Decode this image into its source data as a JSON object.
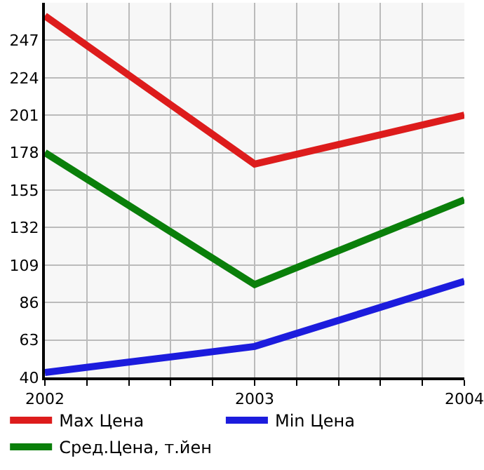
{
  "chart_data": {
    "type": "line",
    "x": [
      2002,
      2003,
      2004
    ],
    "series": [
      {
        "name": "Max Цена",
        "color": "#dd1c1c",
        "values": [
          262,
          171,
          201
        ]
      },
      {
        "name": "Min Цена",
        "color": "#1c1cdd",
        "values": [
          43,
          59,
          99
        ]
      },
      {
        "name": "Сред.Цена, т.йен",
        "color": "#0a7f0a",
        "values": [
          178,
          97,
          149
        ]
      }
    ],
    "xlim": [
      2002,
      2004
    ],
    "xticks": [
      2002,
      {
        "value": 2002.2,
        "label": null
      },
      {
        "value": 2002.4,
        "label": null
      },
      {
        "value": 2002.6,
        "label": null
      },
      {
        "value": 2002.8,
        "label": null
      },
      2003,
      {
        "value": 2003.2,
        "label": null
      },
      {
        "value": 2003.4,
        "label": null
      },
      {
        "value": 2003.6,
        "label": null
      },
      {
        "value": 2003.8,
        "label": null
      },
      2004
    ],
    "ylim": [
      40,
      270
    ],
    "yticks": [
      40,
      63,
      86,
      109,
      132,
      155,
      178,
      201,
      224,
      247
    ],
    "grid": true,
    "legend": "bottom",
    "marker": "none",
    "line_style": "solid"
  }
}
